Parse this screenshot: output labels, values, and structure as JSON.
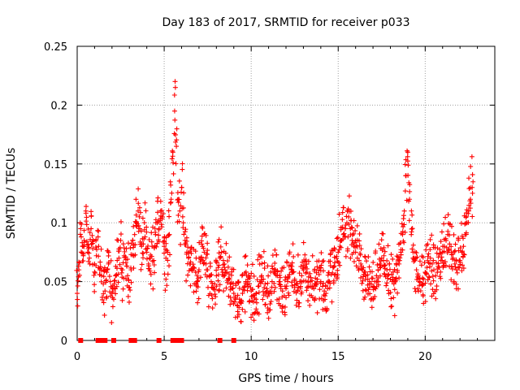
{
  "chart_data": {
    "type": "scatter",
    "title": "Day 183 of 2017, SRMTID for receiver p033",
    "xlabel": "GPS time / hours",
    "ylabel": "SRMTID / TECUs",
    "xlim": [
      0,
      24
    ],
    "ylim": [
      0,
      0.25
    ],
    "xticks": [
      "0",
      "5",
      "10",
      "15",
      "20"
    ],
    "yticks": [
      "0",
      "0.05",
      "0.1",
      "0.15",
      "0.2",
      "0.25"
    ],
    "xtick_values": [
      0,
      5,
      10,
      15,
      20
    ],
    "ytick_values": [
      0,
      0.05,
      0.1,
      0.15,
      0.2,
      0.25
    ],
    "grid": true,
    "marker": "+",
    "color": "#ff0000",
    "series": [
      {
        "name": "SRMTID",
        "x": [
          0.0,
          0.1,
          0.2,
          0.3,
          0.4,
          0.5,
          0.6,
          0.7,
          0.8,
          0.9,
          1.0,
          1.1,
          1.2,
          1.3,
          1.4,
          1.5,
          1.6,
          1.7,
          1.8,
          1.9,
          2.0,
          2.1,
          2.2,
          2.3,
          2.4,
          2.5,
          2.6,
          2.7,
          2.8,
          2.9,
          3.0,
          3.1,
          3.2,
          3.3,
          3.4,
          3.5,
          3.6,
          3.7,
          3.8,
          3.9,
          4.0,
          4.1,
          4.2,
          4.3,
          4.4,
          4.5,
          4.6,
          4.7,
          4.8,
          4.9,
          5.0,
          5.1,
          5.2,
          5.3,
          5.4,
          5.5,
          5.6,
          5.7,
          5.8,
          5.9,
          6.0,
          6.1,
          6.2,
          6.3,
          6.4,
          6.5,
          6.6,
          6.7,
          6.8,
          6.9,
          7.0,
          7.1,
          7.2,
          7.3,
          7.4,
          7.5,
          7.6,
          7.7,
          7.8,
          7.9,
          8.0,
          8.1,
          8.2,
          8.3,
          8.4,
          8.5,
          8.6,
          8.7,
          8.8,
          8.9,
          9.0,
          9.1,
          9.2,
          9.3,
          9.4,
          9.5,
          9.6,
          9.7,
          9.8,
          9.9,
          10.0,
          10.1,
          10.2,
          10.3,
          10.4,
          10.5,
          10.6,
          10.7,
          10.8,
          10.9,
          11.0,
          11.1,
          11.2,
          11.3,
          11.4,
          11.5,
          11.6,
          11.7,
          11.8,
          11.9,
          12.0,
          12.1,
          12.2,
          12.3,
          12.4,
          12.5,
          12.6,
          12.7,
          12.8,
          12.9,
          13.0,
          13.1,
          13.2,
          13.3,
          13.4,
          13.5,
          13.6,
          13.7,
          13.8,
          13.9,
          14.0,
          14.1,
          14.2,
          14.3,
          14.4,
          14.5,
          14.6,
          14.7,
          14.8,
          14.9,
          15.0,
          15.1,
          15.2,
          15.3,
          15.4,
          15.5,
          15.6,
          15.7,
          15.8,
          15.9,
          16.0,
          16.1,
          16.2,
          16.3,
          16.4,
          16.5,
          16.6,
          16.7,
          16.8,
          16.9,
          17.0,
          17.1,
          17.2,
          17.3,
          17.4,
          17.5,
          17.6,
          17.7,
          17.8,
          17.9,
          18.0,
          18.1,
          18.2,
          18.3,
          18.4,
          18.5,
          18.6,
          18.7,
          18.8,
          18.9,
          19.0,
          19.1,
          19.2,
          19.3,
          19.4,
          19.5,
          19.6,
          19.7,
          19.8,
          19.9,
          20.0,
          20.1,
          20.2,
          20.3,
          20.4,
          20.5,
          20.6,
          20.7,
          20.8,
          20.9,
          21.0,
          21.1,
          21.2,
          21.3,
          21.4,
          21.5,
          21.6,
          21.7,
          21.8,
          21.9,
          22.0,
          22.1,
          22.2,
          22.3,
          22.4,
          22.5,
          22.6,
          22.7
        ],
        "y": [
          0.04,
          0.06,
          0.095,
          0.08,
          0.085,
          0.11,
          0.075,
          0.07,
          0.095,
          0.078,
          0.065,
          0.072,
          0.088,
          0.06,
          0.055,
          0.048,
          0.042,
          0.058,
          0.065,
          0.05,
          0.04,
          0.035,
          0.055,
          0.068,
          0.07,
          0.085,
          0.06,
          0.072,
          0.066,
          0.055,
          0.045,
          0.06,
          0.085,
          0.09,
          0.1,
          0.11,
          0.095,
          0.08,
          0.082,
          0.088,
          0.075,
          0.065,
          0.07,
          0.08,
          0.068,
          0.09,
          0.1,
          0.095,
          0.11,
          0.105,
          0.08,
          0.07,
          0.075,
          0.09,
          0.12,
          0.16,
          0.195,
          0.165,
          0.12,
          0.11,
          0.13,
          0.1,
          0.085,
          0.075,
          0.07,
          0.065,
          0.06,
          0.062,
          0.058,
          0.05,
          0.06,
          0.07,
          0.08,
          0.075,
          0.065,
          0.06,
          0.055,
          0.05,
          0.045,
          0.048,
          0.055,
          0.062,
          0.07,
          0.075,
          0.068,
          0.06,
          0.058,
          0.052,
          0.048,
          0.044,
          0.04,
          0.035,
          0.03,
          0.028,
          0.032,
          0.04,
          0.045,
          0.05,
          0.052,
          0.048,
          0.042,
          0.038,
          0.036,
          0.04,
          0.046,
          0.05,
          0.055,
          0.052,
          0.048,
          0.044,
          0.04,
          0.042,
          0.05,
          0.058,
          0.06,
          0.055,
          0.05,
          0.046,
          0.042,
          0.038,
          0.044,
          0.05,
          0.056,
          0.06,
          0.058,
          0.052,
          0.048,
          0.045,
          0.05,
          0.055,
          0.06,
          0.062,
          0.058,
          0.054,
          0.05,
          0.046,
          0.044,
          0.048,
          0.052,
          0.056,
          0.05,
          0.046,
          0.042,
          0.04,
          0.044,
          0.05,
          0.056,
          0.062,
          0.066,
          0.07,
          0.075,
          0.08,
          0.085,
          0.09,
          0.095,
          0.1,
          0.105,
          0.095,
          0.085,
          0.08,
          0.075,
          0.07,
          0.068,
          0.065,
          0.06,
          0.058,
          0.055,
          0.052,
          0.05,
          0.048,
          0.046,
          0.05,
          0.055,
          0.06,
          0.065,
          0.07,
          0.068,
          0.064,
          0.06,
          0.056,
          0.052,
          0.05,
          0.048,
          0.052,
          0.058,
          0.065,
          0.075,
          0.09,
          0.11,
          0.14,
          0.16,
          0.12,
          0.09,
          0.075,
          0.068,
          0.06,
          0.055,
          0.05,
          0.048,
          0.052,
          0.058,
          0.062,
          0.066,
          0.07,
          0.065,
          0.06,
          0.055,
          0.058,
          0.062,
          0.068,
          0.075,
          0.08,
          0.085,
          0.09,
          0.082,
          0.075,
          0.07,
          0.065,
          0.06,
          0.062,
          0.068,
          0.075,
          0.08,
          0.09,
          0.1,
          0.11,
          0.12,
          0.13
        ]
      }
    ],
    "zero_points_x": [
      0.2,
      1.2,
      1.3,
      1.4,
      1.5,
      1.6,
      2.1,
      3.1,
      3.2,
      3.3,
      4.7,
      5.5,
      5.6,
      5.7,
      5.8,
      5.9,
      6.0,
      8.2,
      9.0
    ]
  }
}
